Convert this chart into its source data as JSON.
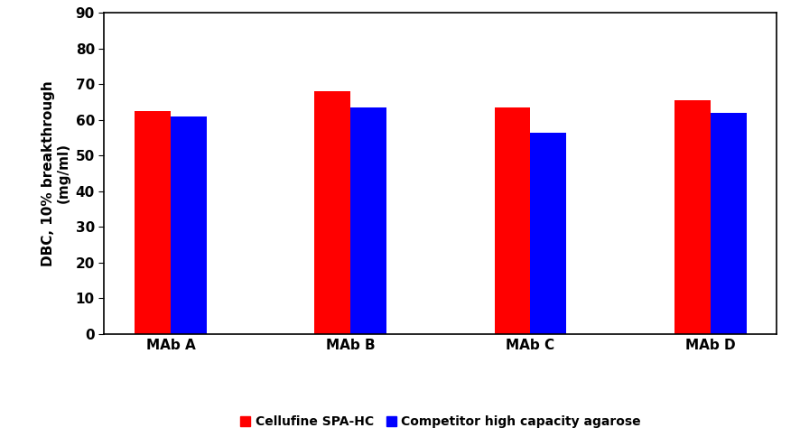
{
  "categories": [
    "MAb A",
    "MAb B",
    "MAb C",
    "MAb D"
  ],
  "cellufine_values": [
    62.5,
    68.0,
    63.5,
    65.5
  ],
  "competitor_values": [
    61.0,
    63.5,
    56.5,
    62.0
  ],
  "cellufine_color": "#FF0000",
  "competitor_color": "#0000FF",
  "ylabel_line1": "DBC, 10% breakthrough",
  "ylabel_line2": "(mg/ml)",
  "ylim": [
    0,
    90
  ],
  "yticks": [
    0,
    10,
    20,
    30,
    40,
    50,
    60,
    70,
    80,
    90
  ],
  "legend_cellufine": "Cellufine SPA-HC",
  "legend_competitor": "Competitor high capacity agarose",
  "bar_width": 0.2,
  "background_color": "#ffffff",
  "plot_bg_color": "#ffffff",
  "legend_fontsize": 10,
  "ylabel_fontsize": 11,
  "tick_fontsize": 11,
  "xlabel_fontsize": 11
}
